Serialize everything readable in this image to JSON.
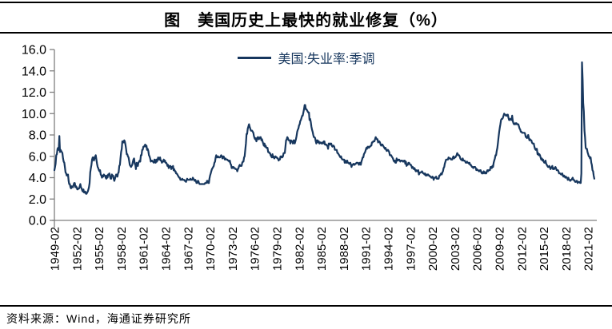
{
  "title": "图　美国历史上最快的就业修复（%）",
  "source": "资料来源：Wind，海通证券研究所",
  "colors": {
    "line": "#17375E",
    "axis": "#7f7f7f",
    "tick_label": "#000000",
    "legend_text": "#17375E",
    "rule": "#000000"
  },
  "chart_data": {
    "type": "line",
    "title": "图　美国历史上最快的就业修复（%）",
    "legend": "美国:失业率:季调",
    "legend_position": "top-center",
    "xlabel": "",
    "ylabel": "",
    "grid": false,
    "ylim": [
      0,
      16
    ],
    "ytick_step": 2,
    "y_tick_labels": [
      "0.0",
      "2.0",
      "4.0",
      "6.0",
      "8.0",
      "10.0",
      "12.0",
      "14.0",
      "16.0"
    ],
    "x_start": "1949-02",
    "x_freq": "monthly",
    "x_tick_every_months": 36,
    "x_tick_labels": [
      "1949-02",
      "1952-02",
      "1955-02",
      "1958-02",
      "1961-02",
      "1964-02",
      "1967-02",
      "1970-02",
      "1973-02",
      "1976-02",
      "1979-02",
      "1982-02",
      "1985-02",
      "1988-02",
      "1991-02",
      "1994-02",
      "1997-02",
      "2000-02",
      "2003-02",
      "2006-02",
      "2009-02",
      "2012-02",
      "2015-02",
      "2018-02",
      "2021-02"
    ],
    "values": [
      4.7,
      5.0,
      5.3,
      6.1,
      6.2,
      6.7,
      6.8,
      6.6,
      7.9,
      6.4,
      6.6,
      6.5,
      6.4,
      6.3,
      5.8,
      5.5,
      5.4,
      5.0,
      4.5,
      4.4,
      4.2,
      4.2,
      4.3,
      3.7,
      3.4,
      3.4,
      3.1,
      3.0,
      3.2,
      3.1,
      3.1,
      3.3,
      3.5,
      3.5,
      3.1,
      3.2,
      3.1,
      2.9,
      2.9,
      3.0,
      3.0,
      3.2,
      3.4,
      3.1,
      3.0,
      2.8,
      2.7,
      2.9,
      2.6,
      2.6,
      2.7,
      2.5,
      2.5,
      2.6,
      2.7,
      2.9,
      3.1,
      3.5,
      4.5,
      4.9,
      5.2,
      5.7,
      5.9,
      5.9,
      5.6,
      5.8,
      6.0,
      6.1,
      5.7,
      5.3,
      5.0,
      4.9,
      4.7,
      4.6,
      4.7,
      4.3,
      4.2,
      4.0,
      4.2,
      4.1,
      4.3,
      4.2,
      4.2,
      4.0,
      3.9,
      4.2,
      4.0,
      4.3,
      4.3,
      4.4,
      4.1,
      3.9,
      3.9,
      4.3,
      4.2,
      4.2,
      3.9,
      3.7,
      3.9,
      4.1,
      4.3,
      4.2,
      4.1,
      4.4,
      4.5,
      5.1,
      5.2,
      5.8,
      6.4,
      6.7,
      7.4,
      7.4,
      7.3,
      7.5,
      7.4,
      7.1,
      6.7,
      6.2,
      6.2,
      6.0,
      5.9,
      5.6,
      5.2,
      5.1,
      5.0,
      5.1,
      5.2,
      5.5,
      5.7,
      5.8,
      5.3,
      5.2,
      4.8,
      5.4,
      5.2,
      5.1,
      5.4,
      5.5,
      5.6,
      5.5,
      6.1,
      6.1,
      6.6,
      6.6,
      6.9,
      6.9,
      7.0,
      7.1,
      6.9,
      7.0,
      6.6,
      6.7,
      6.5,
      6.1,
      6.0,
      5.8,
      5.5,
      5.6,
      5.6,
      5.5,
      5.5,
      5.4,
      5.7,
      5.6,
      5.4,
      5.7,
      5.5,
      5.7,
      5.9,
      5.7,
      5.7,
      5.9,
      5.6,
      5.6,
      5.4,
      5.5,
      5.5,
      5.7,
      5.5,
      5.6,
      5.4,
      5.4,
      5.3,
      5.1,
      5.2,
      4.9,
      5.0,
      5.1,
      5.1,
      4.8,
      5.0,
      4.9,
      5.1,
      4.7,
      4.8,
      4.6,
      4.6,
      4.4,
      4.4,
      4.3,
      4.2,
      4.1,
      4.0,
      4.0,
      3.8,
      3.8,
      3.8,
      3.9,
      3.8,
      3.8,
      3.8,
      3.7,
      3.7,
      3.6,
      3.8,
      3.9,
      3.8,
      3.8,
      3.8,
      3.8,
      3.9,
      3.8,
      3.8,
      3.8,
      4.0,
      3.9,
      3.8,
      3.7,
      3.8,
      3.7,
      3.5,
      3.5,
      3.7,
      3.7,
      3.5,
      3.4,
      3.4,
      3.4,
      3.4,
      3.4,
      3.4,
      3.4,
      3.4,
      3.4,
      3.5,
      3.5,
      3.5,
      3.7,
      3.7,
      3.5,
      3.5,
      3.9,
      4.2,
      4.4,
      4.6,
      4.8,
      4.9,
      5.0,
      5.1,
      5.4,
      5.5,
      5.9,
      6.1,
      5.9,
      5.9,
      6.0,
      5.9,
      5.9,
      5.9,
      6.0,
      6.1,
      6.0,
      5.8,
      6.0,
      6.0,
      5.8,
      5.7,
      5.8,
      5.7,
      5.7,
      5.7,
      5.6,
      5.6,
      5.5,
      5.6,
      5.3,
      5.2,
      4.9,
      5.0,
      4.9,
      5.0,
      4.9,
      4.9,
      4.8,
      4.8,
      4.8,
      4.6,
      4.8,
      4.9,
      5.1,
      5.2,
      5.1,
      5.1,
      5.1,
      5.4,
      5.5,
      5.5,
      5.9,
      6.0,
      6.6,
      7.2,
      8.1,
      8.1,
      8.6,
      8.8,
      9.0,
      8.8,
      8.6,
      8.4,
      8.4,
      8.4,
      8.3,
      8.2,
      7.9,
      7.7,
      7.6,
      7.7,
      7.4,
      7.6,
      7.8,
      7.8,
      7.6,
      7.7,
      7.8,
      7.8,
      7.5,
      7.6,
      7.4,
      7.2,
      7.0,
      7.2,
      6.9,
      7.0,
      6.8,
      6.8,
      6.8,
      6.4,
      6.4,
      6.3,
      6.3,
      6.1,
      6.0,
      5.9,
      6.2,
      5.9,
      6.0,
      5.8,
      5.9,
      6.0,
      5.9,
      5.9,
      5.8,
      5.8,
      5.6,
      5.7,
      5.7,
      6.0,
      5.9,
      6.0,
      5.9,
      6.0,
      6.3,
      6.3,
      6.3,
      6.9,
      7.5,
      7.6,
      7.8,
      7.7,
      7.5,
      7.5,
      7.5,
      7.2,
      7.5,
      7.4,
      7.4,
      7.2,
      7.5,
      7.5,
      7.2,
      7.4,
      7.6,
      7.9,
      8.3,
      8.5,
      8.6,
      8.9,
      9.0,
      9.3,
      9.4,
      9.6,
      9.8,
      9.8,
      10.1,
      10.4,
      10.8,
      10.8,
      10.4,
      10.4,
      10.3,
      10.2,
      10.1,
      10.1,
      9.4,
      9.5,
      9.2,
      8.8,
      8.5,
      8.3,
      8.0,
      7.8,
      7.8,
      7.7,
      7.4,
      7.2,
      7.5,
      7.5,
      7.3,
      7.4,
      7.2,
      7.3,
      7.3,
      7.2,
      7.2,
      7.3,
      7.2,
      7.4,
      7.4,
      7.1,
      7.1,
      7.1,
      7.0,
      7.0,
      6.7,
      7.2,
      7.2,
      7.1,
      7.2,
      7.2,
      7.0,
      6.9,
      7.0,
      7.0,
      6.9,
      6.6,
      6.6,
      6.6,
      6.6,
      6.3,
      6.3,
      6.2,
      6.1,
      6.0,
      5.9,
      6.0,
      5.8,
      5.7,
      5.7,
      5.7,
      5.7,
      5.4,
      5.6,
      5.4,
      5.4,
      5.6,
      5.4,
      5.4,
      5.3,
      5.3,
      5.4,
      5.2,
      5.0,
      5.2,
      5.2,
      5.3,
      5.2,
      5.2,
      5.3,
      5.3,
      5.4,
      5.4,
      5.4,
      5.3,
      5.2,
      5.4,
      5.4,
      5.2,
      5.5,
      5.7,
      5.9,
      5.9,
      6.2,
      6.3,
      6.4,
      6.6,
      6.8,
      6.7,
      6.9,
      6.9,
      6.8,
      6.9,
      6.9,
      7.0,
      7.0,
      7.3,
      7.3,
      7.4,
      7.4,
      7.4,
      7.6,
      7.8,
      7.7,
      7.6,
      7.6,
      7.3,
      7.4,
      7.4,
      7.3,
      7.1,
      7.0,
      7.1,
      7.1,
      7.0,
      6.9,
      6.8,
      6.7,
      6.8,
      6.6,
      6.5,
      6.6,
      6.6,
      6.5,
      6.4,
      6.1,
      6.1,
      6.1,
      6.0,
      5.9,
      5.8,
      5.6,
      5.5,
      5.6,
      5.4,
      5.4,
      5.8,
      5.6,
      5.6,
      5.7,
      5.7,
      5.6,
      5.5,
      5.6,
      5.6,
      5.6,
      5.5,
      5.5,
      5.6,
      5.6,
      5.3,
      5.5,
      5.1,
      5.2,
      5.2,
      5.4,
      5.4,
      5.3,
      5.2,
      5.2,
      5.1,
      4.9,
      5.0,
      4.9,
      4.8,
      4.9,
      4.7,
      4.6,
      4.7,
      4.6,
      4.6,
      4.7,
      4.3,
      4.4,
      4.5,
      4.5,
      4.5,
      4.6,
      4.5,
      4.4,
      4.4,
      4.3,
      4.4,
      4.2,
      4.3,
      4.2,
      4.3,
      4.3,
      4.2,
      4.2,
      4.1,
      4.1,
      4.0,
      4.0,
      4.1,
      4.0,
      3.8,
      4.0,
      4.0,
      4.0,
      4.1,
      3.9,
      3.9,
      3.9,
      3.9,
      4.2,
      4.2,
      4.3,
      4.4,
      4.3,
      4.5,
      4.6,
      4.9,
      5.0,
      5.3,
      5.5,
      5.7,
      5.7,
      5.7,
      5.7,
      5.9,
      5.8,
      5.8,
      5.8,
      5.7,
      5.7,
      5.7,
      5.9,
      6.0,
      5.8,
      5.9,
      5.9,
      6.0,
      6.1,
      6.3,
      6.2,
      6.1,
      6.1,
      6.0,
      5.8,
      5.7,
      5.7,
      5.6,
      5.8,
      5.6,
      5.6,
      5.6,
      5.5,
      5.4,
      5.4,
      5.5,
      5.4,
      5.4,
      5.3,
      5.4,
      5.2,
      5.2,
      5.1,
      5.0,
      5.0,
      4.9,
      5.0,
      5.0,
      5.0,
      4.9,
      4.7,
      4.8,
      4.7,
      4.7,
      4.6,
      4.6,
      4.7,
      4.7,
      4.5,
      4.4,
      4.5,
      4.4,
      4.6,
      4.5,
      4.4,
      4.5,
      4.4,
      4.6,
      4.7,
      4.6,
      4.7,
      4.7,
      4.7,
      5.0,
      5.0,
      4.9,
      5.1,
      5.0,
      5.4,
      5.6,
      5.8,
      6.1,
      6.1,
      6.5,
      6.8,
      7.3,
      7.8,
      8.3,
      8.7,
      9.0,
      9.4,
      9.5,
      9.5,
      9.6,
      9.8,
      10.0,
      9.9,
      9.9,
      9.8,
      9.8,
      9.9,
      9.9,
      9.6,
      9.4,
      9.4,
      9.5,
      9.5,
      9.4,
      9.8,
      9.3,
      9.1,
      9.0,
      9.0,
      9.1,
      9.0,
      9.1,
      9.0,
      9.0,
      9.0,
      8.8,
      8.6,
      8.5,
      8.3,
      8.3,
      8.2,
      8.2,
      8.2,
      8.2,
      8.2,
      8.1,
      7.8,
      7.8,
      7.7,
      7.9,
      8.0,
      7.7,
      7.5,
      7.6,
      7.5,
      7.5,
      7.3,
      7.2,
      7.2,
      7.2,
      6.9,
      6.7,
      6.6,
      6.7,
      6.7,
      6.2,
      6.3,
      6.1,
      6.2,
      6.1,
      5.9,
      5.7,
      5.8,
      5.6,
      5.7,
      5.5,
      5.4,
      5.4,
      5.6,
      5.3,
      5.2,
      5.1,
      5.0,
      5.0,
      5.1,
      5.0,
      4.8,
      4.9,
      5.0,
      5.1,
      4.8,
      4.9,
      4.8,
      4.9,
      5.0,
      4.9,
      4.7,
      4.7,
      4.7,
      4.6,
      4.4,
      4.4,
      4.4,
      4.3,
      4.3,
      4.4,
      4.2,
      4.1,
      4.2,
      4.1,
      4.0,
      4.1,
      4.0,
      4.0,
      3.8,
      4.0,
      3.8,
      3.8,
      3.7,
      3.8,
      3.8,
      3.9,
      4.0,
      3.8,
      3.8,
      3.7,
      3.6,
      3.6,
      3.7,
      3.7,
      3.5,
      3.6,
      3.6,
      3.6,
      3.5,
      3.5,
      4.4,
      14.8,
      13.2,
      11.0,
      10.2,
      8.4,
      7.8,
      6.8,
      6.7,
      6.7,
      6.4,
      6.2,
      6.0,
      6.0,
      5.8,
      5.9,
      5.4,
      5.2,
      4.7,
      4.6,
      4.2,
      3.9
    ]
  }
}
